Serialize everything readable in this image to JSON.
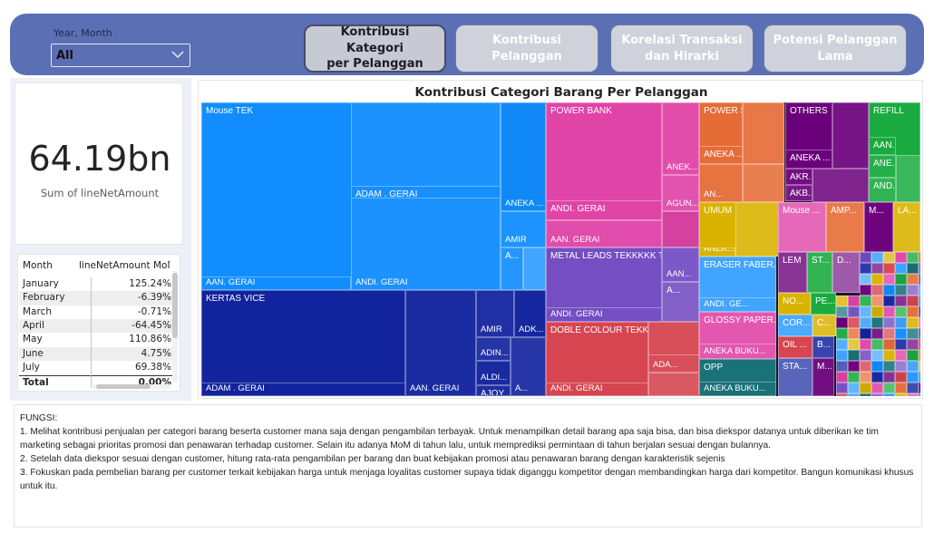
{
  "header": {
    "slicer_label": "Year, Month",
    "slicer_value": "All",
    "nav_buttons": [
      {
        "label_1": "Kontribusi Kategori",
        "label_2": "per Pelanggan",
        "active": true
      },
      {
        "label_1": "Kontribusi",
        "label_2": "Pelanggan",
        "active": false
      },
      {
        "label_1": "Korelasi Transaksi",
        "label_2": "dan Hirarki",
        "active": false
      },
      {
        "label_1": "Potensi Pelanggan",
        "label_2": "Lama",
        "active": false
      }
    ]
  },
  "kpi": {
    "value": "64.19bn",
    "label": "Sum of lineNetAmount"
  },
  "month_table": {
    "col_month": "Month",
    "col_value": "lineNetAmount MoM%",
    "rows": [
      {
        "month": "January",
        "value": "125.24%"
      },
      {
        "month": "February",
        "value": "-6.39%"
      },
      {
        "month": "March",
        "value": "-0.71%"
      },
      {
        "month": "April",
        "value": "-64.45%"
      },
      {
        "month": "May",
        "value": "110.86%"
      },
      {
        "month": "June",
        "value": "4.75%"
      },
      {
        "month": "July",
        "value": "69.38%"
      }
    ],
    "total_label": "Total",
    "total_value": "0.00%"
  },
  "treemap": {
    "title": "Kontribusi Categori Barang Per Pelanggan",
    "labels": {
      "mouse_tek": "Mouse TEK",
      "adam_gerai": "ADAM . GERAI",
      "aneka": "ANEKA ...",
      "amir": "AMIR",
      "a": "A...",
      "aan_gerai": "AAN. GERAI",
      "andi_gerai": "ANDI. GERAI",
      "kertas_vice": "KERTAS VICE",
      "adk": "ADK...",
      "adin": "ADIN...",
      "aldi": "ALDI...",
      "ajoy": "AJOY...",
      "power_bank": "POWER BANK",
      "anek": "ANEK...",
      "agun": "AGUN...",
      "metal_leads": "METAL LEADS TEKKKKK TOKK TE...",
      "aan": "AAN...",
      "doble_colour": "DOBLE COLOUR TEKKKKK TOKK ...",
      "ada": "ADA...",
      "power_suply": "POWER SUPLY",
      "aneka_g": "ANEKA ... ANEKA G...",
      "an": "AN...",
      "umum": "UMUM",
      "eraser": "ERASER FABER...",
      "andi_ge": "ANDI. GE...",
      "glossy": "GLOSSY PAPER...",
      "aneka_buku": "ANEKA BUKU...",
      "opp": "OPP",
      "others": "OTHERS",
      "aneka_aan": "ANEKA ... AAN...",
      "akr": "AKR...",
      "akb": "AKB...",
      "refill": "REFILL",
      "aan_ge": "AAN. GE...",
      "ane": "ANE...",
      "and": "AND...",
      "mouse": "Mouse ...",
      "amp": "AMP...",
      "m": "M...",
      "la": "LA...",
      "lem": "LEM",
      "st": "ST...",
      "d": "D...",
      "no": "NO...",
      "pe": "PE...",
      "cor": "COR...",
      "c": "C...",
      "oil": "OIL ...",
      "b": "B...",
      "sta": "STA...",
      "m2": "M..."
    },
    "colors": {
      "blue": "#118dff",
      "navy": "#12239e",
      "pink": "#e044a7",
      "purple": "#744ec2",
      "red": "#d64550",
      "orange": "#e66c37",
      "yellow": "#d9b300",
      "teal": "#197278",
      "violet": "#6b007b",
      "green": "#1aab40",
      "skyblue": "#41a4ff"
    }
  },
  "notes": {
    "heading": "FUNGSI:",
    "items": [
      "1. Melihat kontribusi penjualan per categori barang beserta customer mana saja dengan pengambilan terbayak. Untuk menampilkan detail barang apa saja bisa, dan bisa diekspor datanya untuk diberikan ke tim marketing sebagai prioritas promosi dan penawaran terhadap customer. Selain itu adanya MoM di tahun lalu, untuk memprediksi permintaan di tahun berjalan sesuai dengan bulannya.",
      "2. Setelah data diekspor sesuai dengan customer, hitung rata-rata pengambilan per barang dan buat kebijakan promosi atau penawaran barang dengan karakteristik sejenis",
      "3. Fokuskan pada pembelian barang per customer terkait kebijakan harga untuk menjaga loyalitas customer supaya tidak diganggu kompetitor dengan membandingkan harga dari kompetitor. Bangun komunikasi khusus untuk itu."
    ]
  }
}
